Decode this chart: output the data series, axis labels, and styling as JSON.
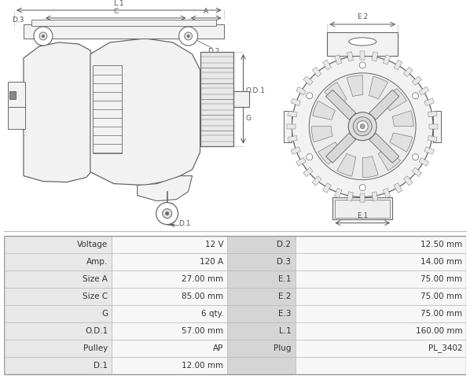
{
  "table_rows": [
    [
      "Voltage",
      "12 V",
      "D.2",
      "12.50 mm"
    ],
    [
      "Amp.",
      "120 A",
      "D.3",
      "14.00 mm"
    ],
    [
      "Size A",
      "27.00 mm",
      "E.1",
      "75.00 mm"
    ],
    [
      "Size C",
      "85.00 mm",
      "E.2",
      "75.00 mm"
    ],
    [
      "G",
      "6 qty.",
      "E.3",
      "75.00 mm"
    ],
    [
      "O.D.1",
      "57.00 mm",
      "L.1",
      "160.00 mm"
    ],
    [
      "Pulley",
      "AP",
      "Plug",
      "PL_3402"
    ],
    [
      "D.1",
      "12.00 mm",
      "",
      ""
    ]
  ],
  "bg_color_label": "#e8e8e8",
  "bg_color_value": "#f7f7f7",
  "bg_color_mid": "#d5d5d5",
  "border_color": "#bbbbbb",
  "text_color": "#333333",
  "diagram_bg": "#ffffff",
  "image_bg": "#ffffff",
  "dim_color": "#555555",
  "line_color": "#666666",
  "body_fill": "#f2f2f2",
  "body_edge": "#666666"
}
